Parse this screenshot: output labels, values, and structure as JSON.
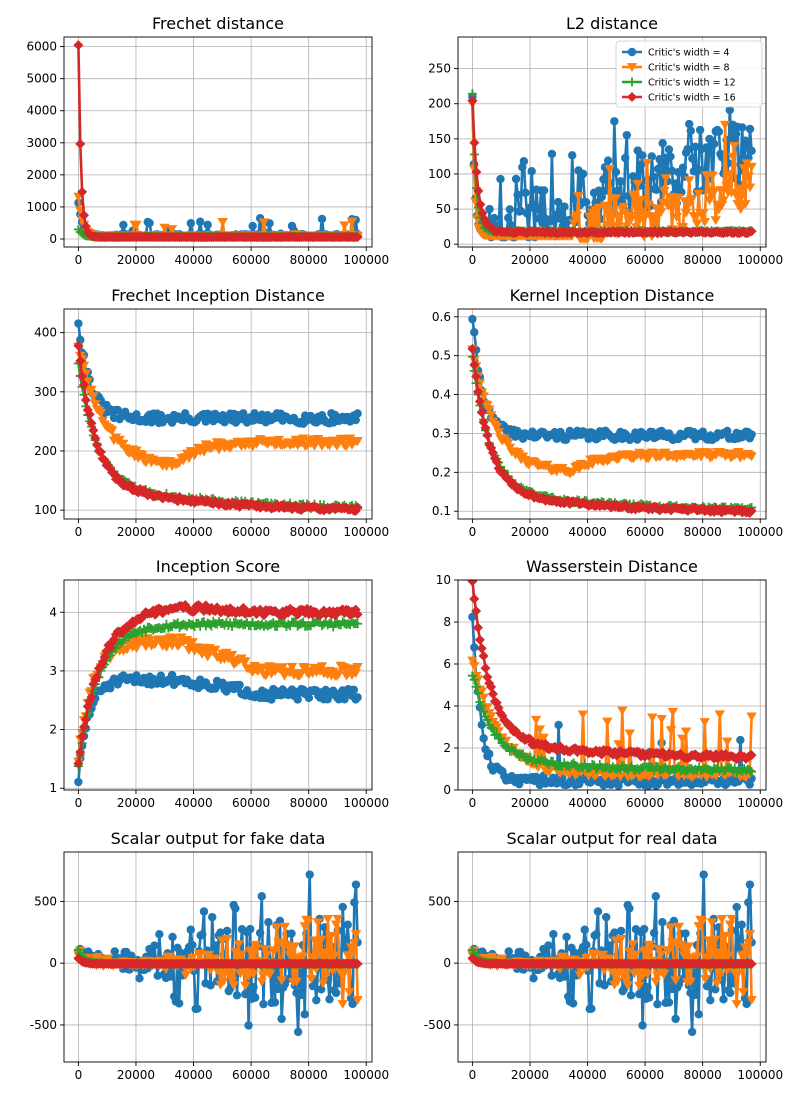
{
  "colors": {
    "w4": "#1f77b4",
    "w8": "#ff7f0e",
    "w12": "#2ca02c",
    "w16": "#d62728"
  },
  "legend": {
    "placement": "top-right",
    "panel": "L2 distance",
    "entries": [
      "Critic's width = 4",
      "Critic's width = 8",
      "Critic's width = 12",
      "Critic's width = 16"
    ]
  },
  "chart_data": [
    {
      "title": "Frechet distance",
      "type": "line",
      "xlim": [
        -5000,
        102000
      ],
      "ylim": [
        -250,
        6300
      ],
      "xticks": [
        0,
        20000,
        40000,
        60000,
        80000,
        100000
      ],
      "yticks": [
        0,
        1000,
        2000,
        3000,
        4000,
        5000,
        6000
      ],
      "grid": true,
      "series": [
        {
          "name": "Critic's width = 4",
          "marker": "circle",
          "model": "spike",
          "params": {
            "start": 1100,
            "base": 90,
            "tau": 1500,
            "noise": 60,
            "spikeProb": 0.14,
            "spikeMin": 150,
            "spikeMax": 650,
            "floor": 0
          },
          "x_end": 97000,
          "n": 150,
          "seed": 11
        },
        {
          "name": "Critic's width = 8",
          "marker": "triangle-down",
          "model": "spike",
          "params": {
            "start": 1300,
            "base": 80,
            "tau": 1500,
            "noise": 40,
            "spikeProb": 0.1,
            "spikeMin": 120,
            "spikeMax": 550,
            "floor": 0
          },
          "x_end": 97000,
          "n": 150,
          "seed": 12
        },
        {
          "name": "Critic's width = 12",
          "marker": "plus",
          "model": "decay",
          "params": {
            "start": 300,
            "end": 70,
            "tau": 1500,
            "noise": 8
          },
          "x_end": 97000,
          "n": 150,
          "seed": 13
        },
        {
          "name": "Critic's width = 16",
          "marker": "diamond",
          "model": "decay",
          "params": {
            "start": 6050,
            "end": 60,
            "tau": 900,
            "noise": 6
          },
          "x_end": 97000,
          "n": 150,
          "seed": 14
        }
      ]
    },
    {
      "title": "L2 distance",
      "type": "line",
      "xlim": [
        -5000,
        102000
      ],
      "ylim": [
        -4,
        295
      ],
      "xticks": [
        0,
        20000,
        40000,
        60000,
        80000,
        100000
      ],
      "yticks": [
        0,
        50,
        100,
        150,
        200,
        250
      ],
      "grid": true,
      "series": [
        {
          "name": "Critic's width = 4",
          "marker": "circle",
          "model": "ramp",
          "params": {
            "start": 210,
            "low": 15,
            "tau": 800,
            "growStart": 5000,
            "growEnd": 97000,
            "growMin": 0,
            "growMax": 120,
            "noise": 45,
            "spikeProb": 0.2,
            "spikeAmp": 110,
            "floor": 10
          },
          "x_end": 97000,
          "n": 180,
          "seed": 21
        },
        {
          "name": "Critic's width = 8",
          "marker": "triangle-down",
          "model": "ramp",
          "params": {
            "start": 200,
            "low": 12,
            "tau": 800,
            "growStart": 35000,
            "growEnd": 97000,
            "growMin": 0,
            "growMax": 70,
            "noise": 35,
            "spikeProb": 0.15,
            "spikeAmp": 80,
            "floor": 8
          },
          "x_end": 97000,
          "n": 180,
          "seed": 22
        },
        {
          "name": "Critic's width = 12",
          "marker": "plus",
          "model": "decay",
          "params": {
            "start": 215,
            "end": 18,
            "tau": 1200,
            "noise": 1.5
          },
          "x_end": 97000,
          "n": 140,
          "seed": 23
        },
        {
          "name": "Critic's width = 16",
          "marker": "diamond",
          "model": "decay",
          "params": {
            "start": 205,
            "end": 17,
            "tau": 1800,
            "noise": 1.5
          },
          "x_end": 97000,
          "n": 140,
          "seed": 24
        }
      ]
    },
    {
      "title": "Frechet Inception Distance",
      "type": "line",
      "xlim": [
        -5000,
        102000
      ],
      "ylim": [
        85,
        440
      ],
      "xticks": [
        0,
        20000,
        40000,
        60000,
        80000,
        100000
      ],
      "yticks": [
        100,
        200,
        300,
        400
      ],
      "grid": true,
      "series": [
        {
          "name": "Critic's width = 4",
          "marker": "circle",
          "model": "decay",
          "params": {
            "start": 420,
            "end": 255,
            "tau": 4000,
            "noise": 9
          },
          "x_end": 97000,
          "n": 150,
          "seed": 31
        },
        {
          "name": "Critic's width = 8",
          "marker": "triangle-down",
          "model": "dipRecover",
          "params": {
            "start": 380,
            "dipX": 34000,
            "dipY": 172,
            "tau": 9000,
            "endY": 215,
            "noise": 7
          },
          "x_end": 97000,
          "n": 150,
          "seed": 32
        },
        {
          "name": "Critic's width = 12",
          "marker": "plus",
          "model": "decay2",
          "params": {
            "start": 350,
            "mid": 150,
            "end": 100,
            "tau1": 6000,
            "tau2": 40000,
            "noise": 4
          },
          "x_end": 97000,
          "n": 150,
          "seed": 33
        },
        {
          "name": "Critic's width = 16",
          "marker": "diamond",
          "model": "decay2",
          "params": {
            "start": 380,
            "mid": 150,
            "end": 97,
            "tau1": 5500,
            "tau2": 38000,
            "noise": 4
          },
          "x_end": 97000,
          "n": 150,
          "seed": 34
        }
      ]
    },
    {
      "title": "Kernel Inception Distance",
      "type": "line",
      "xlim": [
        -5000,
        102000
      ],
      "ylim": [
        0.08,
        0.62
      ],
      "xticks": [
        0,
        20000,
        40000,
        60000,
        80000,
        100000
      ],
      "yticks": [
        0.1,
        0.2,
        0.3,
        0.4,
        0.5,
        0.6
      ],
      "grid": true,
      "series": [
        {
          "name": "Critic's width = 4",
          "marker": "circle",
          "model": "decay",
          "params": {
            "start": 0.6,
            "end": 0.295,
            "tau": 3500,
            "noise": 0.012
          },
          "x_end": 97000,
          "n": 150,
          "seed": 41
        },
        {
          "name": "Critic's width = 8",
          "marker": "triangle-down",
          "model": "dipRecover",
          "params": {
            "start": 0.52,
            "dipX": 35000,
            "dipY": 0.2,
            "tau": 8000,
            "endY": 0.245,
            "noise": 0.008
          },
          "x_end": 97000,
          "n": 150,
          "seed": 42
        },
        {
          "name": "Critic's width = 12",
          "marker": "plus",
          "model": "decay2",
          "params": {
            "start": 0.5,
            "mid": 0.16,
            "end": 0.1,
            "tau1": 6000,
            "tau2": 40000,
            "noise": 0.005
          },
          "x_end": 97000,
          "n": 150,
          "seed": 43
        },
        {
          "name": "Critic's width = 16",
          "marker": "diamond",
          "model": "decay2",
          "params": {
            "start": 0.52,
            "mid": 0.16,
            "end": 0.095,
            "tau1": 5500,
            "tau2": 38000,
            "noise": 0.005
          },
          "x_end": 97000,
          "n": 150,
          "seed": 44
        }
      ]
    },
    {
      "title": "Inception Score",
      "type": "line",
      "xlim": [
        -5000,
        102000
      ],
      "ylim": [
        0.97,
        4.55
      ],
      "xticks": [
        0,
        20000,
        40000,
        60000,
        80000,
        100000
      ],
      "yticks": [
        1,
        2,
        3,
        4
      ],
      "grid": true,
      "series": [
        {
          "name": "Critic's width = 4",
          "marker": "circle",
          "model": "rise",
          "params": {
            "start": 1.15,
            "peak": 2.85,
            "tau": 3500,
            "endY": 2.6,
            "noise": 0.09
          },
          "x_end": 97000,
          "n": 150,
          "seed": 51
        },
        {
          "name": "Critic's width = 8",
          "marker": "triangle-down",
          "model": "rise",
          "params": {
            "start": 1.5,
            "peak": 3.5,
            "tau": 5000,
            "endY": 3.0,
            "noise": 0.09
          },
          "x_end": 97000,
          "n": 150,
          "seed": 52
        },
        {
          "name": "Critic's width = 12",
          "marker": "plus",
          "model": "rise",
          "params": {
            "start": 1.4,
            "peak": 3.8,
            "tau": 7000,
            "endY": 3.8,
            "noise": 0.05
          },
          "x_end": 97000,
          "n": 150,
          "seed": 53
        },
        {
          "name": "Critic's width = 16",
          "marker": "diamond",
          "model": "rise",
          "params": {
            "start": 1.45,
            "peak": 4.1,
            "tau": 8000,
            "endY": 4.0,
            "noise": 0.06
          },
          "x_end": 97000,
          "n": 150,
          "seed": 54
        }
      ]
    },
    {
      "title": "Wasserstein Distance",
      "type": "line",
      "xlim": [
        -5000,
        102000
      ],
      "ylim": [
        0,
        10
      ],
      "xticks": [
        0,
        20000,
        40000,
        60000,
        80000,
        100000
      ],
      "yticks": [
        0,
        2,
        4,
        6,
        8,
        10
      ],
      "grid": true,
      "series": [
        {
          "name": "Critic's width = 4",
          "marker": "circle",
          "model": "spike",
          "params": {
            "start": 8,
            "base": 0.2,
            "tau": 3000,
            "noise": 0.5,
            "spikeProb": 0.08,
            "spikeMin": 1.5,
            "spikeMax": 3.2,
            "floor": 0
          },
          "x_end": 97000,
          "n": 150,
          "seed": 61
        },
        {
          "name": "Critic's width = 8",
          "marker": "triangle-down",
          "model": "spike",
          "params": {
            "start": 6,
            "base": 0.6,
            "tau": 9000,
            "noise": 0.35,
            "spikeProb": 0.12,
            "spikeMin": 2.0,
            "spikeMax": 3.9,
            "floor": 0
          },
          "x_end": 97000,
          "n": 150,
          "seed": 62
        },
        {
          "name": "Critic's width = 12",
          "marker": "plus",
          "model": "decay2",
          "params": {
            "start": 5.5,
            "mid": 1.5,
            "end": 0.9,
            "tau1": 7000,
            "tau2": 40000,
            "noise": 0.12
          },
          "x_end": 97000,
          "n": 150,
          "seed": 63
        },
        {
          "name": "Critic's width = 16",
          "marker": "diamond",
          "model": "decay2",
          "params": {
            "start": 10,
            "mid": 2.4,
            "end": 1.5,
            "tau1": 6000,
            "tau2": 40000,
            "noise": 0.12
          },
          "x_end": 97000,
          "n": 150,
          "seed": 64
        }
      ]
    },
    {
      "title": "Scalar output for fake data",
      "type": "line",
      "xlim": [
        -5000,
        102000
      ],
      "ylim": [
        -800,
        900
      ],
      "xticks": [
        0,
        20000,
        40000,
        60000,
        80000,
        100000
      ],
      "yticks": [
        -500,
        0,
        500
      ],
      "grid": true,
      "series": [
        {
          "name": "Critic's width = 4",
          "marker": "circle",
          "model": "osc",
          "params": {
            "amp0": 140,
            "amp1": 650,
            "growFrom": 20000,
            "spikeProb": 0.25,
            "bias": 20
          },
          "x_end": 97000,
          "n": 170,
          "seed": 71
        },
        {
          "name": "Critic's width = 8",
          "marker": "triangle-down",
          "model": "osc",
          "params": {
            "amp0": 40,
            "amp1": 300,
            "growFrom": 30000,
            "spikeProb": 0.3,
            "bias": 0
          },
          "x_end": 97000,
          "n": 170,
          "seed": 72
        },
        {
          "name": "Critic's width = 12",
          "marker": "plus",
          "model": "decay",
          "params": {
            "start": 110,
            "end": -5,
            "tau": 2000,
            "noise": 4
          },
          "x_end": 97000,
          "n": 140,
          "seed": 73
        },
        {
          "name": "Critic's width = 16",
          "marker": "diamond",
          "model": "decay",
          "params": {
            "start": 40,
            "end": -5,
            "tau": 1500,
            "noise": 2
          },
          "x_end": 97000,
          "n": 140,
          "seed": 74
        }
      ]
    },
    {
      "title": "Scalar output for real data",
      "type": "line",
      "xlim": [
        -5000,
        102000
      ],
      "ylim": [
        -800,
        900
      ],
      "xticks": [
        0,
        20000,
        40000,
        60000,
        80000,
        100000
      ],
      "yticks": [
        -500,
        0,
        500
      ],
      "grid": true,
      "series": [
        {
          "name": "Critic's width = 4",
          "marker": "circle",
          "model": "osc",
          "params": {
            "amp0": 140,
            "amp1": 650,
            "growFrom": 20000,
            "spikeProb": 0.25,
            "bias": 20
          },
          "x_end": 97000,
          "n": 170,
          "seed": 71
        },
        {
          "name": "Critic's width = 8",
          "marker": "triangle-down",
          "model": "osc",
          "params": {
            "amp0": 40,
            "amp1": 300,
            "growFrom": 30000,
            "spikeProb": 0.3,
            "bias": 0
          },
          "x_end": 97000,
          "n": 170,
          "seed": 72
        },
        {
          "name": "Critic's width = 12",
          "marker": "plus",
          "model": "decay",
          "params": {
            "start": 110,
            "end": -5,
            "tau": 2000,
            "noise": 4
          },
          "x_end": 97000,
          "n": 140,
          "seed": 73
        },
        {
          "name": "Critic's width = 16",
          "marker": "diamond",
          "model": "decay",
          "params": {
            "start": 40,
            "end": -5,
            "tau": 1500,
            "noise": 2
          },
          "x_end": 97000,
          "n": 140,
          "seed": 74
        }
      ]
    }
  ]
}
